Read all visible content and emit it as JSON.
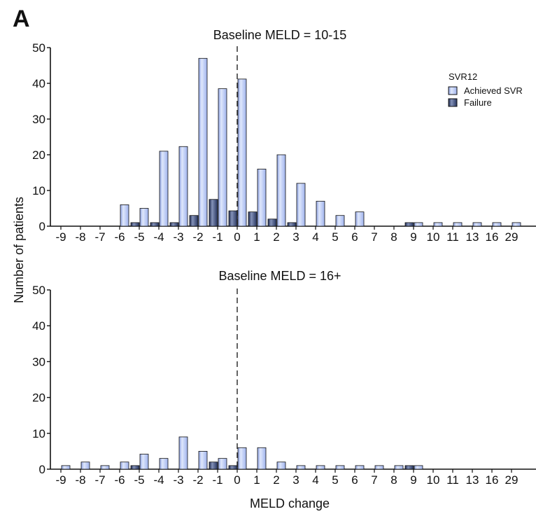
{
  "figure": {
    "panel_letter": "A",
    "ylabel": "Number of patients",
    "xlabel": "MELD change"
  },
  "legend": {
    "title": "SVR12",
    "placement": "top-right of upper panel",
    "items": [
      {
        "label": "Achieved SVR",
        "color": "#aebff2"
      },
      {
        "label": "Failure",
        "color": "#27355f"
      }
    ]
  },
  "colors": {
    "achieved": "#aebff2",
    "achieved_highlight": "#dfe7fb",
    "failure": "#27355f",
    "failure_highlight": "#8391b8"
  },
  "chart_data": [
    {
      "type": "bar",
      "title": "Baseline MELD = 10-15",
      "categories": [
        "-9",
        "-8",
        "-7",
        "-6",
        "-5",
        "-4",
        "-3",
        "-2",
        "-1",
        "0",
        "1",
        "2",
        "3",
        "4",
        "5",
        "6",
        "7",
        "8",
        "9",
        "10",
        "11",
        "13",
        "16",
        "29"
      ],
      "ylim": [
        0,
        50
      ],
      "yticks": [
        0,
        10,
        20,
        30,
        40,
        50
      ],
      "reference_line": {
        "x": "0",
        "style": "dashed"
      },
      "series": [
        {
          "name": "Failure",
          "values": [
            0,
            0,
            0,
            0,
            1,
            1,
            1,
            3,
            7.5,
            4.3,
            4,
            2,
            1,
            0,
            0,
            0,
            0,
            0,
            1,
            0,
            0,
            0,
            0,
            0
          ]
        },
        {
          "name": "Achieved SVR",
          "values": [
            0,
            0,
            0,
            6,
            5,
            21,
            22.3,
            47,
            38.5,
            41.2,
            16,
            20,
            12,
            7,
            3,
            4,
            0,
            0,
            1,
            1,
            1,
            1,
            1,
            1
          ]
        }
      ]
    },
    {
      "type": "bar",
      "title": "Baseline MELD = 16+",
      "categories": [
        "-9",
        "-8",
        "-7",
        "-6",
        "-5",
        "-4",
        "-3",
        "-2",
        "-1",
        "0",
        "1",
        "2",
        "3",
        "4",
        "5",
        "6",
        "7",
        "8",
        "9",
        "10",
        "11",
        "13",
        "16",
        "29"
      ],
      "ylim": [
        0,
        50
      ],
      "yticks": [
        0,
        10,
        20,
        30,
        40,
        50
      ],
      "reference_line": {
        "x": "0",
        "style": "dashed"
      },
      "series": [
        {
          "name": "Failure",
          "values": [
            0,
            0,
            0,
            0,
            1,
            0,
            0,
            0,
            2,
            1,
            0,
            0,
            0,
            0,
            0,
            0,
            0,
            0,
            1,
            0,
            0,
            0,
            0,
            0
          ]
        },
        {
          "name": "Achieved SVR",
          "values": [
            1,
            2,
            1,
            2,
            4.2,
            3,
            9,
            5,
            3,
            6,
            6,
            2,
            1,
            1,
            1,
            1,
            1,
            1,
            1,
            0,
            0,
            0,
            0,
            0
          ]
        }
      ]
    }
  ]
}
